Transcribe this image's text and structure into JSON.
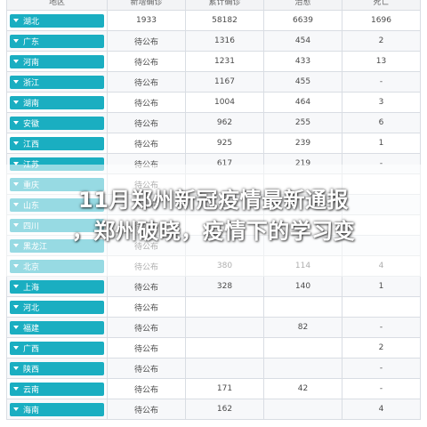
{
  "table": {
    "headers": [
      "地区",
      "新增确诊",
      "累计确诊",
      "治愈",
      "死亡"
    ],
    "rows": [
      {
        "province": "湖北",
        "new": "1933",
        "total": "58182",
        "cured": "6639",
        "deaths": "1696"
      },
      {
        "province": "广东",
        "new": "待公布",
        "total": "1316",
        "cured": "454",
        "deaths": "2"
      },
      {
        "province": "河南",
        "new": "待公布",
        "total": "1231",
        "cured": "433",
        "deaths": "13"
      },
      {
        "province": "浙江",
        "new": "待公布",
        "total": "1167",
        "cured": "455",
        "deaths": "-"
      },
      {
        "province": "湖南",
        "new": "待公布",
        "total": "1004",
        "cured": "464",
        "deaths": "3"
      },
      {
        "province": "安徽",
        "new": "待公布",
        "total": "962",
        "cured": "255",
        "deaths": "6"
      },
      {
        "province": "江西",
        "new": "待公布",
        "total": "925",
        "cured": "239",
        "deaths": "1"
      },
      {
        "province": "江苏",
        "new": "待公布",
        "total": "617",
        "cured": "219",
        "deaths": "-"
      },
      {
        "province": "重庆",
        "new": "待公布",
        "total": "",
        "cured": "",
        "deaths": ""
      },
      {
        "province": "山东",
        "new": "待公布",
        "total": "",
        "cured": "",
        "deaths": ""
      },
      {
        "province": "四川",
        "new": "待公布",
        "total": "",
        "cured": "",
        "deaths": ""
      },
      {
        "province": "黑龙江",
        "new": "待公布",
        "total": "",
        "cured": "",
        "deaths": ""
      },
      {
        "province": "北京",
        "new": "待公布",
        "total": "380",
        "cured": "114",
        "deaths": "4"
      },
      {
        "province": "上海",
        "new": "待公布",
        "total": "328",
        "cured": "140",
        "deaths": "1"
      },
      {
        "province": "河北",
        "new": "待公布",
        "total": "",
        "cured": "",
        "deaths": ""
      },
      {
        "province": "福建",
        "new": "待公布",
        "total": "",
        "cured": "82",
        "deaths": "-"
      },
      {
        "province": "广西",
        "new": "待公布",
        "total": "",
        "cured": "",
        "deaths": "2"
      },
      {
        "province": "陕西",
        "new": "待公布",
        "total": "",
        "cured": "",
        "deaths": "-"
      },
      {
        "province": "云南",
        "new": "待公布",
        "total": "171",
        "cured": "42",
        "deaths": "-"
      },
      {
        "province": "海南",
        "new": "待公布",
        "total": "162",
        "cured": "",
        "deaths": "4"
      }
    ]
  },
  "headline": {
    "line1": "11月郑州新冠疫情最新通报",
    "line2": "，郑州破晓，疫情下的学习变"
  },
  "colors": {
    "province_tag": "#1aaec1",
    "link": "#2b6bd6"
  }
}
